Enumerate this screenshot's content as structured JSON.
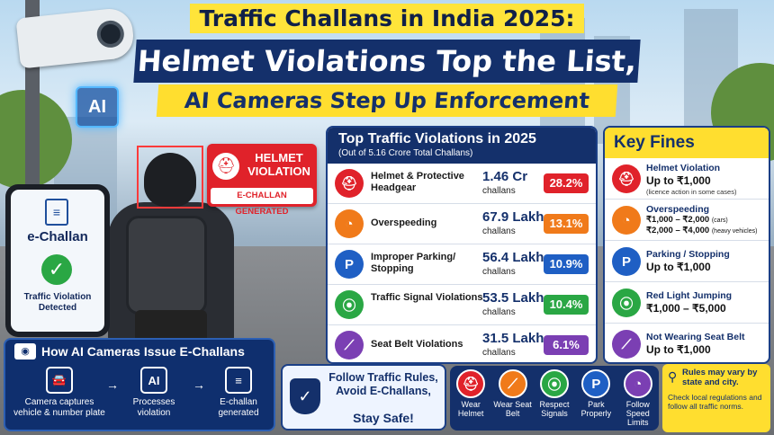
{
  "title": {
    "line1": "Traffic Challans in India 2025:",
    "line2": "Helmet Violations Top the List,",
    "line3": "AI Cameras Step Up Enforcement"
  },
  "camera": {
    "ai_label": "AI"
  },
  "helmet_tag": {
    "label": "HELMET VIOLATION",
    "status": "E-CHALLAN GENERATED"
  },
  "phone": {
    "title": "e-Challan",
    "message": "Traffic Violation Detected"
  },
  "how": {
    "title": "How AI Cameras Issue E-Challans",
    "steps": [
      {
        "label": "Camera captures vehicle & number plate"
      },
      {
        "label": "Processes violation",
        "icon_text": "AI"
      },
      {
        "label": "E-challan generated"
      }
    ],
    "arrow": "→"
  },
  "violations": {
    "title": "Top Traffic Violations in 2025",
    "subtitle": "(Out of 5.16 Crore Total Challans)",
    "unit": "challans",
    "rows": [
      {
        "name": "Helmet & Protective Headgear",
        "value": "1.46 Cr",
        "pct": "28.2%",
        "icon": "helmet-icon",
        "color": "#e0222a"
      },
      {
        "name": "Overspeeding",
        "value": "67.9 Lakh",
        "pct": "13.1%",
        "icon": "speedometer-icon",
        "color": "#f07a1a"
      },
      {
        "name": "Improper Parking/ Stopping",
        "value": "56.4 Lakh",
        "pct": "10.9%",
        "icon": "parking-icon",
        "color": "#1f5fc4",
        "icon_text": "P"
      },
      {
        "name": "Traffic Signal Violations",
        "value": "53.5 Lakh",
        "pct": "10.4%",
        "icon": "traffic-light-icon",
        "color": "#2aa744"
      },
      {
        "name": "Seat Belt Violations",
        "value": "31.5 Lakh",
        "pct": "6.1%",
        "icon": "seatbelt-icon",
        "color": "#7b3fb3"
      }
    ]
  },
  "fines": {
    "title": "Key Fines",
    "rows": [
      {
        "name": "Helmet Violation",
        "fine": "Up to ₹1,000",
        "note": "(licence action in some cases)"
      },
      {
        "name": "Overspeeding",
        "line1": "₹1,000 – ₹2,000",
        "line1_note": "(cars)",
        "line2": "₹2,000 – ₹4,000",
        "line2_note": "(heavy vehicles)"
      },
      {
        "name": "Parking / Stopping",
        "fine": "Up to ₹1,000",
        "icon_text": "P"
      },
      {
        "name": "Red Light Jumping",
        "fine": "₹1,000 – ₹5,000"
      },
      {
        "name": "Not Wearing Seat Belt",
        "fine": "Up to ₹1,000"
      }
    ]
  },
  "follow": {
    "text": "Follow Traffic Rules, Avoid E-Challans,",
    "stay": "Stay Safe!"
  },
  "actions": [
    {
      "label": "Wear Helmet",
      "color": "#e0222a"
    },
    {
      "label": "Wear Seat Belt",
      "color": "#f07a1a"
    },
    {
      "label": "Respect Signals",
      "color": "#2aa744"
    },
    {
      "label": "Park Properly",
      "color": "#1f5fc4",
      "icon_text": "P"
    },
    {
      "label": "Follow Speed Limits",
      "color": "#7b3fb3"
    }
  ],
  "note": {
    "heading": "Rules may vary by state and city.",
    "body": "Check local regulations and follow all traffic norms."
  },
  "colors": {
    "navy": "#14306b",
    "yellow": "#ffde2f",
    "red": "#e0222a"
  }
}
